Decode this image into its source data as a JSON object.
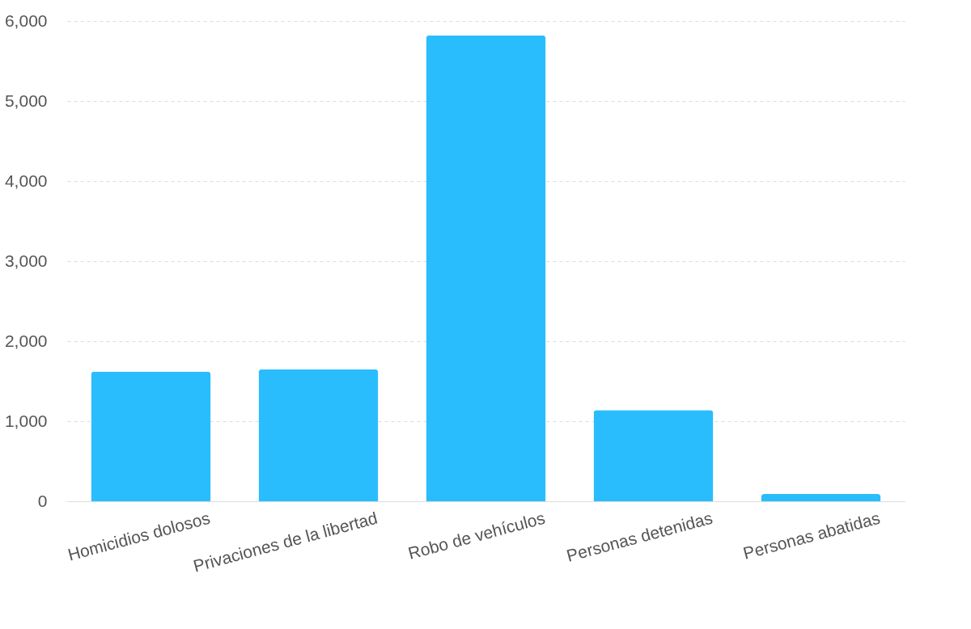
{
  "chart_data": {
    "type": "bar",
    "categories": [
      "Homicidios dolosos",
      "Privaciones de la libertad",
      "Robo de vehículos",
      "Personas detenidas",
      "Personas abatidas"
    ],
    "values": [
      1620,
      1650,
      5820,
      1140,
      90
    ],
    "color": "#29bdfd",
    "ylim": [
      0,
      6000
    ],
    "yticks": [
      {
        "value": 0,
        "label": "0"
      },
      {
        "value": 1000,
        "label": "1,000"
      },
      {
        "value": 2000,
        "label": "2,000"
      },
      {
        "value": 3000,
        "label": "3,000"
      },
      {
        "value": 4000,
        "label": "4,000"
      },
      {
        "value": 5000,
        "label": "5,000"
      },
      {
        "value": 6000,
        "label": "6,000"
      }
    ],
    "grid": "y"
  }
}
